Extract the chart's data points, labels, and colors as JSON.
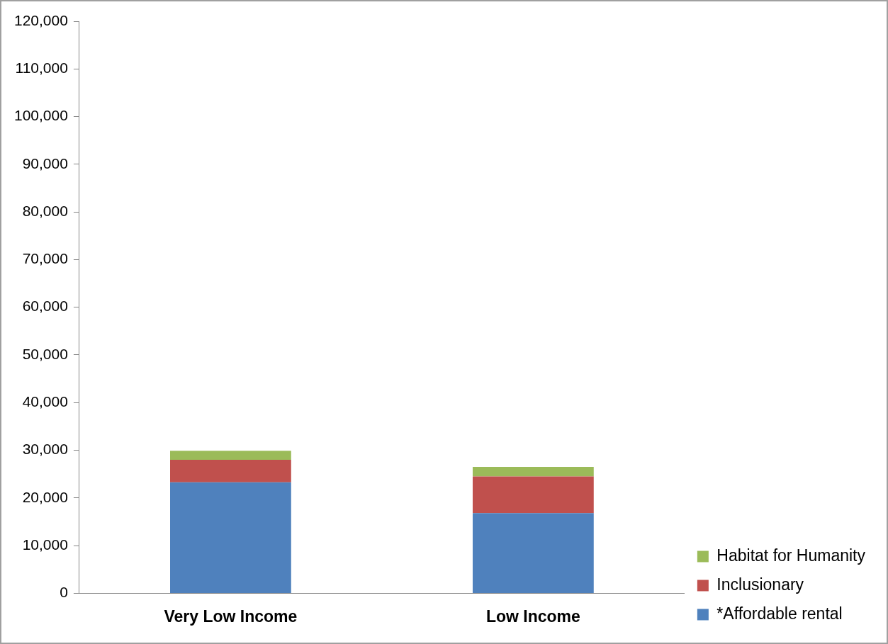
{
  "chart_data": {
    "type": "bar",
    "stacked": true,
    "categories": [
      "Very Low Income",
      "Low Income"
    ],
    "series": [
      {
        "name": "*Affordable rental",
        "color": "#4f81bd",
        "values": [
          23300,
          16800
        ]
      },
      {
        "name": "Inclusionary",
        "color": "#c0504d",
        "values": [
          4700,
          7700
        ]
      },
      {
        "name": "Habitat for Humanity",
        "color": "#9bbb59",
        "values": [
          1900,
          2000
        ]
      }
    ],
    "ylim": [
      0,
      120000
    ],
    "yticks": [
      0,
      {
        "value": 10000,
        "label": "10,000"
      },
      {
        "value": 20000,
        "label": "20,000"
      },
      {
        "value": 30000,
        "label": "30,000"
      },
      {
        "value": 40000,
        "label": "40,000"
      },
      {
        "value": 50000,
        "label": "50,000"
      },
      {
        "value": 60000,
        "label": "60,000"
      },
      {
        "value": 70000,
        "label": "70,000"
      },
      {
        "value": 80000,
        "label": "80,000"
      },
      {
        "value": 90000,
        "label": "90,000"
      },
      {
        "value": 100000,
        "label": "100,000"
      },
      {
        "value": 110000,
        "label": "110,000"
      },
      {
        "value": 120000,
        "label": "120,000"
      }
    ],
    "grid": false,
    "legend": "right"
  }
}
